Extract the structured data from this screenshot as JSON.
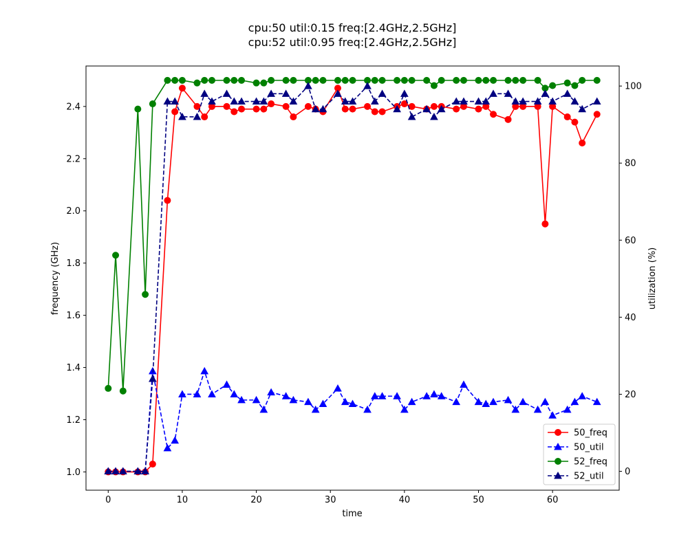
{
  "chart_data": {
    "type": "line",
    "title": [
      "cpu:50 util:0.15 freq:[2.4GHz,2.5GHz]",
      "cpu:52 util:0.95 freq:[2.4GHz,2.5GHz]"
    ],
    "xlabel": "time",
    "ylabel": "frequency (GHz)",
    "y2label": "utilization (%)",
    "xlim": [
      -3,
      69
    ],
    "ylim": [
      0.93,
      2.555
    ],
    "y2lim": [
      -4.9,
      105.2
    ],
    "xticks": [
      0,
      10,
      20,
      30,
      40,
      50,
      60
    ],
    "yticks": [
      1.0,
      1.2,
      1.4,
      1.6,
      1.8,
      2.0,
      2.2,
      2.4
    ],
    "y2ticks": [
      0,
      20,
      40,
      60,
      80,
      100
    ],
    "grid": false,
    "legend_position": "bottom-right",
    "series": [
      {
        "name": "50_freq",
        "axis": "left",
        "color": "#ff0000",
        "dash": "solid",
        "marker": "circle",
        "x": [
          0,
          1,
          2,
          4,
          5,
          6,
          8,
          9,
          10,
          12,
          13,
          14,
          16,
          17,
          18,
          20,
          21,
          22,
          24,
          25,
          27,
          28,
          29,
          31,
          32,
          33,
          35,
          36,
          37,
          39,
          40,
          41,
          43,
          44,
          45,
          47,
          48,
          50,
          51,
          52,
          54,
          55,
          56,
          58,
          59,
          60,
          62,
          63,
          64,
          66
        ],
        "values": [
          1.0,
          1.0,
          1.0,
          1.0,
          1.0,
          1.03,
          2.04,
          2.38,
          2.47,
          2.4,
          2.36,
          2.4,
          2.4,
          2.38,
          2.39,
          2.39,
          2.39,
          2.41,
          2.4,
          2.36,
          2.4,
          2.39,
          2.38,
          2.47,
          2.39,
          2.39,
          2.4,
          2.38,
          2.38,
          2.4,
          2.41,
          2.4,
          2.39,
          2.4,
          2.4,
          2.39,
          2.4,
          2.39,
          2.4,
          2.37,
          2.35,
          2.4,
          2.4,
          2.4,
          1.95,
          2.4,
          2.36,
          2.34,
          2.26,
          2.37
        ]
      },
      {
        "name": "50_util",
        "axis": "right",
        "color": "#0000ff",
        "dash": "dashed",
        "marker": "triangle",
        "x": [
          0,
          1,
          2,
          4,
          5,
          6,
          8,
          9,
          10,
          12,
          13,
          14,
          16,
          17,
          18,
          20,
          21,
          22,
          24,
          25,
          27,
          28,
          29,
          31,
          32,
          33,
          35,
          36,
          37,
          39,
          40,
          41,
          43,
          44,
          45,
          47,
          48,
          50,
          51,
          52,
          54,
          55,
          56,
          58,
          59,
          60,
          62,
          63,
          64,
          66
        ],
        "values": [
          0,
          0,
          0,
          0,
          0,
          26,
          6,
          8,
          20,
          20,
          26,
          20,
          22.5,
          20,
          18.5,
          18.5,
          16,
          20.5,
          19.5,
          18.5,
          18,
          16,
          17.5,
          21.5,
          18,
          17.5,
          16,
          19.5,
          19.5,
          19.5,
          16,
          18,
          19.5,
          20,
          19.5,
          18,
          22.5,
          18,
          17.5,
          18,
          18.5,
          16,
          18,
          16,
          18,
          14.5,
          16,
          18,
          19.5,
          18
        ]
      },
      {
        "name": "52_freq",
        "axis": "left",
        "color": "#008000",
        "dash": "solid",
        "marker": "circle",
        "x": [
          0,
          1,
          2,
          4,
          5,
          6,
          8,
          9,
          10,
          12,
          13,
          14,
          16,
          17,
          18,
          20,
          21,
          22,
          24,
          25,
          27,
          28,
          29,
          31,
          32,
          33,
          35,
          36,
          37,
          39,
          40,
          41,
          43,
          44,
          45,
          47,
          48,
          50,
          51,
          52,
          54,
          55,
          56,
          58,
          59,
          60,
          62,
          63,
          64,
          66
        ],
        "values": [
          1.32,
          1.83,
          1.31,
          2.39,
          1.68,
          2.41,
          2.5,
          2.5,
          2.5,
          2.49,
          2.5,
          2.5,
          2.5,
          2.5,
          2.5,
          2.49,
          2.49,
          2.5,
          2.5,
          2.5,
          2.5,
          2.5,
          2.5,
          2.5,
          2.5,
          2.5,
          2.5,
          2.5,
          2.5,
          2.5,
          2.5,
          2.5,
          2.5,
          2.48,
          2.5,
          2.5,
          2.5,
          2.5,
          2.5,
          2.5,
          2.5,
          2.5,
          2.5,
          2.5,
          2.47,
          2.48,
          2.49,
          2.48,
          2.5,
          2.5
        ]
      },
      {
        "name": "52_util",
        "axis": "right",
        "color": "#000080",
        "dash": "dashed",
        "marker": "triangle",
        "x": [
          0,
          1,
          2,
          4,
          5,
          6,
          8,
          9,
          10,
          12,
          13,
          14,
          16,
          17,
          18,
          20,
          21,
          22,
          24,
          25,
          27,
          28,
          29,
          31,
          32,
          33,
          35,
          36,
          37,
          39,
          40,
          41,
          43,
          44,
          45,
          47,
          48,
          50,
          51,
          52,
          54,
          55,
          56,
          58,
          59,
          60,
          62,
          63,
          64,
          66
        ],
        "values": [
          0,
          0,
          0,
          0,
          0,
          24,
          96,
          96,
          92,
          92,
          98,
          96,
          98,
          96,
          96,
          96,
          96,
          98,
          98,
          96,
          100,
          94,
          94,
          98,
          96,
          96,
          100,
          96,
          98,
          94,
          98,
          92,
          94,
          92,
          94,
          96,
          96,
          96,
          96,
          98,
          98,
          96,
          96,
          96,
          98,
          96,
          98,
          96,
          94,
          96
        ]
      }
    ]
  }
}
